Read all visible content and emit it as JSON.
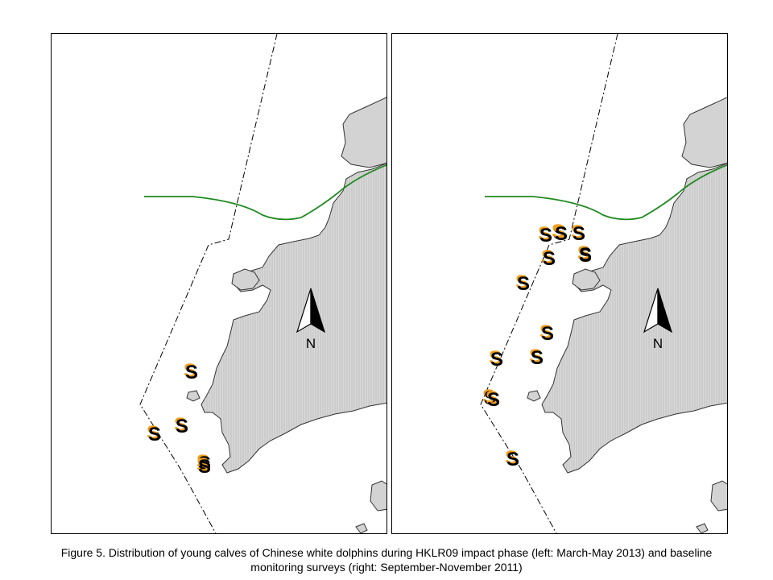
{
  "figure": {
    "caption_line1": "Figure 5.  Distribution of young calves of Chinese white dolphins during HKLR09 impact phase (left: March-May 2013) and baseline",
    "caption_line2": "monitoring surveys (right: September-November 2011)"
  },
  "map": {
    "north_label": "N",
    "sighting_symbol": "S",
    "colors": {
      "land_fill": "#d3d3d3",
      "land_stroke": "#333333",
      "alignment_line": "#1f8a1f",
      "boundary_line": "#000000",
      "symbol_fill": "#000000",
      "symbol_accent": "#f0a020"
    }
  },
  "panels": [
    {
      "id": "left",
      "period": "March-May 2013",
      "sighting_count": 5
    },
    {
      "id": "right",
      "period": "September-November 2011",
      "sighting_count": 14
    }
  ]
}
